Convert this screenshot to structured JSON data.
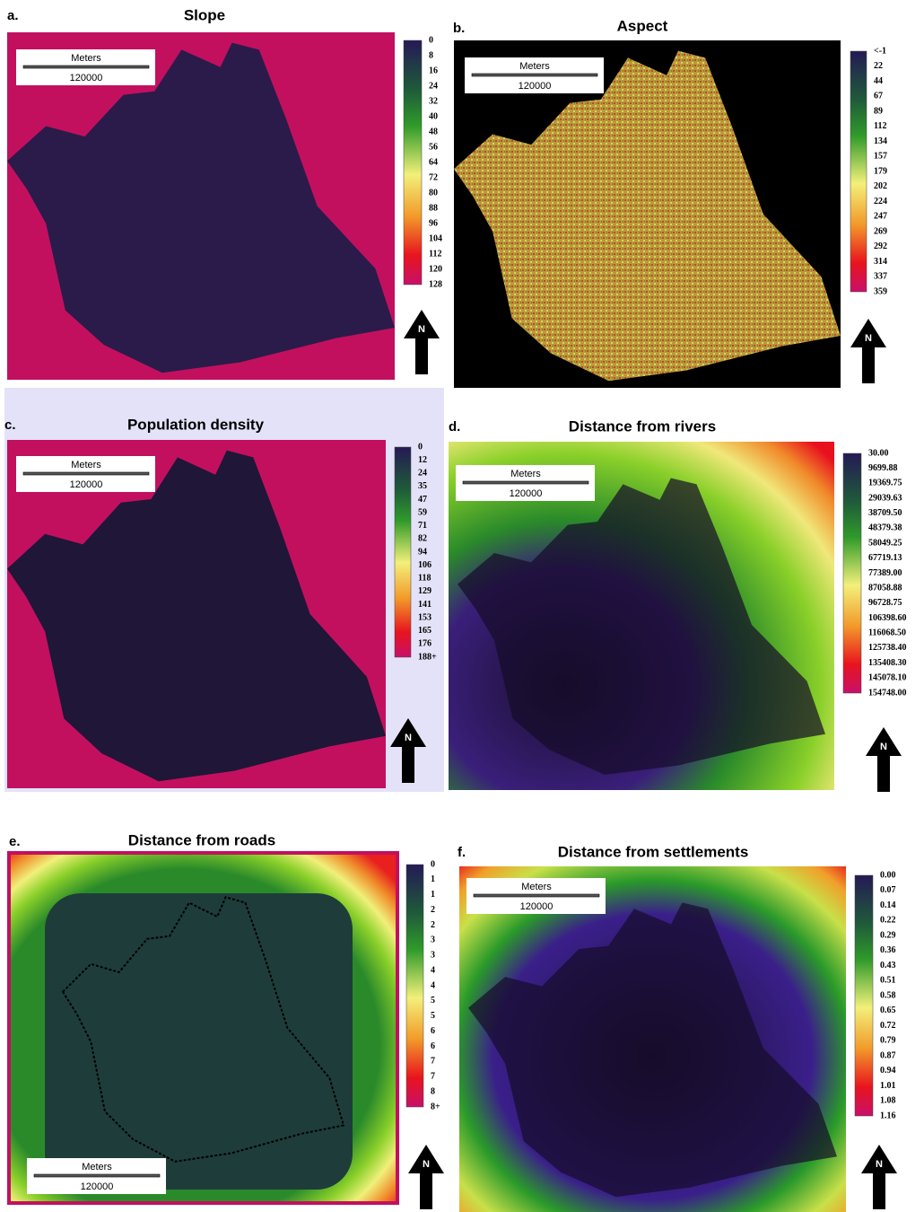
{
  "panels": [
    {
      "letter": "a.",
      "title": "Slope",
      "scale_bar": {
        "unit": "Meters",
        "distance": "120000"
      },
      "north": "N",
      "legend": [
        "0",
        "8",
        "16",
        "24",
        "32",
        "40",
        "48",
        "56",
        "64",
        "72",
        "80",
        "88",
        "96",
        "104",
        "112",
        "120",
        "128"
      ]
    },
    {
      "letter": "b.",
      "title": "Aspect",
      "scale_bar": {
        "unit": "Meters",
        "distance": "120000"
      },
      "north": "N",
      "legend": [
        "<-1",
        "22",
        "44",
        "67",
        "89",
        "112",
        "134",
        "157",
        "179",
        "202",
        "224",
        "247",
        "269",
        "292",
        "314",
        "337",
        "359"
      ]
    },
    {
      "letter": "c.",
      "title": "Population density",
      "scale_bar": {
        "unit": "Meters",
        "distance": "120000"
      },
      "north": "N",
      "legend": [
        "0",
        "12",
        "24",
        "35",
        "47",
        "59",
        "71",
        "82",
        "94",
        "106",
        "118",
        "129",
        "141",
        "153",
        "165",
        "176",
        "188+"
      ]
    },
    {
      "letter": "d.",
      "title": "Distance from rivers",
      "scale_bar": {
        "unit": "Meters",
        "distance": "120000"
      },
      "north": "N",
      "legend": [
        "30.00",
        "9699.88",
        "19369.75",
        "29039.63",
        "38709.50",
        "48379.38",
        "58049.25",
        "67719.13",
        "77389.00",
        "87058.88",
        "96728.75",
        "106398.60",
        "116068.50",
        "125738.40",
        "135408.30",
        "145078.10",
        "154748.00"
      ]
    },
    {
      "letter": "e.",
      "title": "Distance from roads",
      "scale_bar": {
        "unit": "Meters",
        "distance": "120000"
      },
      "north": "N",
      "legend": [
        "0",
        "1",
        "1",
        "2",
        "2",
        "3",
        "3",
        "4",
        "4",
        "5",
        "5",
        "6",
        "6",
        "7",
        "7",
        "8",
        "8+"
      ]
    },
    {
      "letter": "f.",
      "title": "Distance from settlements",
      "scale_bar": {
        "unit": "Meters",
        "distance": "120000"
      },
      "north": "N",
      "legend": [
        "0.00",
        "0.07",
        "0.14",
        "0.22",
        "0.29",
        "0.36",
        "0.43",
        "0.51",
        "0.58",
        "0.65",
        "0.72",
        "0.79",
        "0.87",
        "0.94",
        "1.01",
        "1.08",
        "1.16"
      ]
    }
  ]
}
